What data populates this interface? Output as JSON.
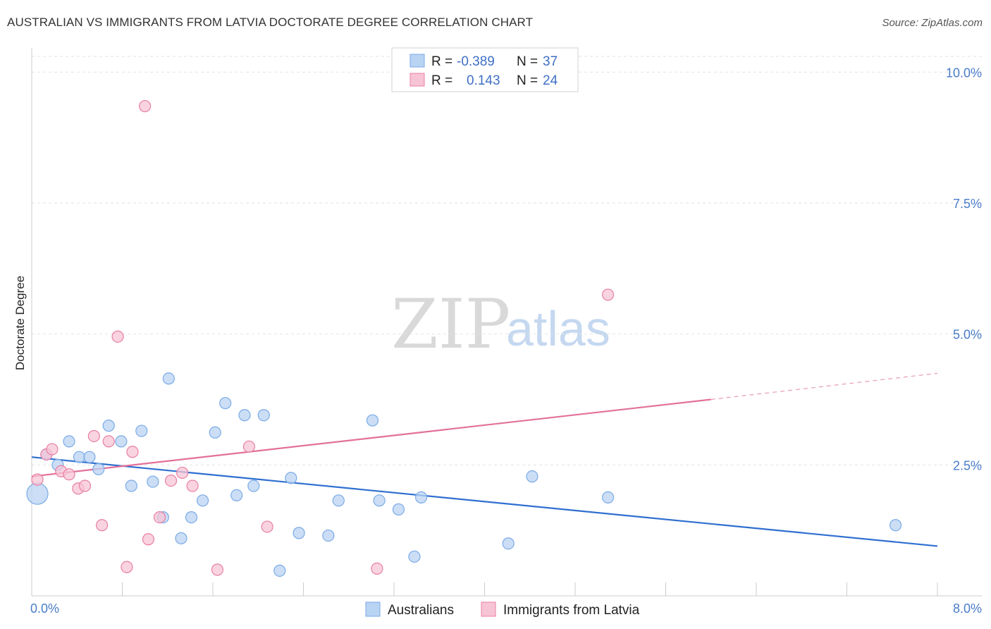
{
  "title": "AUSTRALIAN VS IMMIGRANTS FROM LATVIA DOCTORATE DEGREE CORRELATION CHART",
  "source": "Source: ZipAtlas.com",
  "watermark": {
    "zip": "ZIP",
    "atlas": "atlas"
  },
  "legend_stats": [
    {
      "r_label": "R =",
      "r_value": "-0.389",
      "n_label": "N =",
      "n_value": "37"
    },
    {
      "r_label": "R =",
      "r_value": "0.143",
      "n_label": "N =",
      "n_value": "24"
    }
  ],
  "chart_data": {
    "type": "scatter",
    "title": "AUSTRALIAN VS IMMIGRANTS FROM LATVIA DOCTORATE DEGREE CORRELATION CHART",
    "xlabel": "",
    "ylabel": "Doctorate Degree",
    "xlim": [
      0,
      8
    ],
    "ylim": [
      0,
      10.3
    ],
    "x_tick_labels": [
      "0.0%",
      "8.0%"
    ],
    "y_ticks": [
      2.5,
      5.0,
      7.5,
      10.0
    ],
    "y_tick_labels": [
      "2.5%",
      "5.0%",
      "7.5%",
      "10.0%"
    ],
    "grid": "horizontal dashed",
    "legend_position": "top-center",
    "series": [
      {
        "name": "Australians",
        "color": "#7aaae6",
        "fill": "#b9d3f3",
        "trend": {
          "x0": 0.0,
          "y0": 2.65,
          "x1": 8.0,
          "y1": 0.95
        },
        "points": [
          [
            0.05,
            1.95
          ],
          [
            0.13,
            2.7
          ],
          [
            0.23,
            2.5
          ],
          [
            0.33,
            2.95
          ],
          [
            0.42,
            2.65
          ],
          [
            0.51,
            2.65
          ],
          [
            0.59,
            2.42
          ],
          [
            0.68,
            3.25
          ],
          [
            0.79,
            2.95
          ],
          [
            0.88,
            2.1
          ],
          [
            0.97,
            3.15
          ],
          [
            1.07,
            2.18
          ],
          [
            1.16,
            1.5
          ],
          [
            1.21,
            4.15
          ],
          [
            1.32,
            1.1
          ],
          [
            1.41,
            1.5
          ],
          [
            1.51,
            1.82
          ],
          [
            1.62,
            3.12
          ],
          [
            1.71,
            3.68
          ],
          [
            1.81,
            1.92
          ],
          [
            1.88,
            3.45
          ],
          [
            1.96,
            2.1
          ],
          [
            2.05,
            3.45
          ],
          [
            2.19,
            0.48
          ],
          [
            2.29,
            2.25
          ],
          [
            2.36,
            1.2
          ],
          [
            2.62,
            1.15
          ],
          [
            2.71,
            1.82
          ],
          [
            3.01,
            3.35
          ],
          [
            3.07,
            1.82
          ],
          [
            3.24,
            1.65
          ],
          [
            3.38,
            0.75
          ],
          [
            3.44,
            1.88
          ],
          [
            4.21,
            1.0
          ],
          [
            4.42,
            2.28
          ],
          [
            5.09,
            1.88
          ],
          [
            7.63,
            1.35
          ]
        ]
      },
      {
        "name": "Immigrants from Latvia",
        "color": "#e87fa3",
        "fill": "#f7c4d5",
        "trend": {
          "x0": 0.0,
          "y0": 2.28,
          "x1": 6.0,
          "y1": 3.75
        },
        "trend_dashed": {
          "x0": 6.0,
          "y0": 3.75,
          "x1": 8.0,
          "y1": 4.25
        },
        "points": [
          [
            0.05,
            2.22
          ],
          [
            0.13,
            2.7
          ],
          [
            0.18,
            2.8
          ],
          [
            0.26,
            2.38
          ],
          [
            0.33,
            2.32
          ],
          [
            0.41,
            2.05
          ],
          [
            0.47,
            2.1
          ],
          [
            0.55,
            3.05
          ],
          [
            0.62,
            1.35
          ],
          [
            0.68,
            2.95
          ],
          [
            0.76,
            4.95
          ],
          [
            0.84,
            0.55
          ],
          [
            0.89,
            2.75
          ],
          [
            1.0,
            9.35
          ],
          [
            1.03,
            1.08
          ],
          [
            1.13,
            1.5
          ],
          [
            1.23,
            2.2
          ],
          [
            1.33,
            2.35
          ],
          [
            1.42,
            2.1
          ],
          [
            1.64,
            0.5
          ],
          [
            1.92,
            2.85
          ],
          [
            2.08,
            1.32
          ],
          [
            3.05,
            0.52
          ],
          [
            5.09,
            5.75
          ]
        ]
      }
    ]
  }
}
